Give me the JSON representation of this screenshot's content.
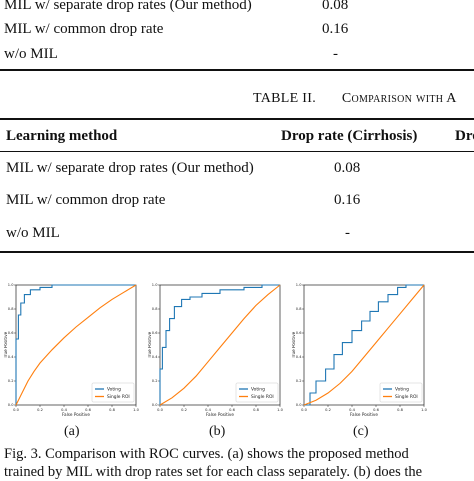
{
  "table1_partial": {
    "rows": [
      {
        "method": "MIL w/ separate drop rates (Our method)",
        "cirrhosis": "0.08"
      },
      {
        "method": "MIL w/ common drop rate",
        "cirrhosis": "0.16"
      },
      {
        "method": "w/o MIL",
        "cirrhosis": "-"
      }
    ]
  },
  "table2": {
    "number": "TABLE II.",
    "title_fragment": "Comparison with A",
    "headers": [
      "Learning method",
      "Drop rate (Cirrhosis)",
      "Dro"
    ],
    "rows": [
      {
        "method": "MIL w/ separate drop rates (Our method)",
        "cirrhosis": "0.08"
      },
      {
        "method": "MIL w/ common drop rate",
        "cirrhosis": "0.16"
      },
      {
        "method": "w/o MIL",
        "cirrhosis": "-"
      }
    ]
  },
  "figure": {
    "panel_labels": [
      "(a)",
      "(b)",
      "(c)"
    ],
    "caption_line1": "Fig. 3.   Comparison with ROC curves. (a) shows the proposed method",
    "caption_line2": "trained by MIL with drop rates set for each class separately. (b) does the"
  },
  "chart_data": [
    {
      "type": "line",
      "xlabel": "False Positive",
      "ylabel": "True Positive",
      "xlim": [
        0,
        1
      ],
      "ylim": [
        0,
        1
      ],
      "ticks": [
        "0.0",
        "0.2",
        "0.4",
        "0.6",
        "0.8",
        "1.0"
      ],
      "legend_position": "lower-right",
      "series": [
        {
          "name": "Voting",
          "color": "#1f77b4",
          "points": [
            [
              0,
              0
            ],
            [
              0,
              0.55
            ],
            [
              0.02,
              0.55
            ],
            [
              0.02,
              0.75
            ],
            [
              0.04,
              0.75
            ],
            [
              0.04,
              0.85
            ],
            [
              0.07,
              0.85
            ],
            [
              0.07,
              0.92
            ],
            [
              0.12,
              0.92
            ],
            [
              0.12,
              0.96
            ],
            [
              0.2,
              0.96
            ],
            [
              0.2,
              0.98
            ],
            [
              0.3,
              0.98
            ],
            [
              0.3,
              1.0
            ],
            [
              1,
              1
            ]
          ]
        },
        {
          "name": "Single ROI",
          "color": "#ff7f0e",
          "points": [
            [
              0,
              0
            ],
            [
              0.02,
              0.04
            ],
            [
              0.05,
              0.1
            ],
            [
              0.1,
              0.2
            ],
            [
              0.15,
              0.28
            ],
            [
              0.2,
              0.35
            ],
            [
              0.3,
              0.46
            ],
            [
              0.4,
              0.56
            ],
            [
              0.5,
              0.65
            ],
            [
              0.6,
              0.73
            ],
            [
              0.7,
              0.81
            ],
            [
              0.8,
              0.88
            ],
            [
              0.9,
              0.94
            ],
            [
              1,
              1
            ]
          ]
        }
      ]
    },
    {
      "type": "line",
      "xlabel": "False Positive",
      "ylabel": "True Positive",
      "xlim": [
        0,
        1
      ],
      "ylim": [
        0,
        1
      ],
      "ticks": [
        "0.0",
        "0.2",
        "0.4",
        "0.6",
        "0.8",
        "1.0"
      ],
      "legend_position": "lower-right",
      "series": [
        {
          "name": "Voting",
          "color": "#1f77b4",
          "points": [
            [
              0,
              0
            ],
            [
              0,
              0.3
            ],
            [
              0.02,
              0.3
            ],
            [
              0.02,
              0.48
            ],
            [
              0.05,
              0.48
            ],
            [
              0.05,
              0.62
            ],
            [
              0.08,
              0.62
            ],
            [
              0.08,
              0.72
            ],
            [
              0.12,
              0.72
            ],
            [
              0.12,
              0.82
            ],
            [
              0.18,
              0.82
            ],
            [
              0.18,
              0.88
            ],
            [
              0.25,
              0.88
            ],
            [
              0.25,
              0.9
            ],
            [
              0.35,
              0.9
            ],
            [
              0.35,
              0.93
            ],
            [
              0.5,
              0.93
            ],
            [
              0.5,
              0.96
            ],
            [
              0.7,
              0.96
            ],
            [
              0.7,
              0.98
            ],
            [
              0.85,
              0.98
            ],
            [
              0.85,
              1.0
            ],
            [
              1,
              1
            ]
          ]
        },
        {
          "name": "Single ROI",
          "color": "#ff7f0e",
          "points": [
            [
              0,
              0
            ],
            [
              0.1,
              0.06
            ],
            [
              0.2,
              0.14
            ],
            [
              0.3,
              0.24
            ],
            [
              0.4,
              0.36
            ],
            [
              0.5,
              0.48
            ],
            [
              0.6,
              0.6
            ],
            [
              0.7,
              0.72
            ],
            [
              0.8,
              0.83
            ],
            [
              0.9,
              0.92
            ],
            [
              1,
              1
            ]
          ]
        }
      ]
    },
    {
      "type": "line",
      "xlabel": "False Positive",
      "ylabel": "True Positive",
      "xlim": [
        0,
        1
      ],
      "ylim": [
        0,
        1
      ],
      "ticks": [
        "0.0",
        "0.2",
        "0.4",
        "0.6",
        "0.8",
        "1.0"
      ],
      "legend_position": "lower-right",
      "series": [
        {
          "name": "Voting",
          "color": "#1f77b4",
          "points": [
            [
              0,
              0
            ],
            [
              0.05,
              0
            ],
            [
              0.05,
              0.1
            ],
            [
              0.1,
              0.1
            ],
            [
              0.1,
              0.2
            ],
            [
              0.18,
              0.2
            ],
            [
              0.18,
              0.3
            ],
            [
              0.25,
              0.3
            ],
            [
              0.25,
              0.42
            ],
            [
              0.32,
              0.42
            ],
            [
              0.32,
              0.52
            ],
            [
              0.4,
              0.52
            ],
            [
              0.4,
              0.62
            ],
            [
              0.48,
              0.62
            ],
            [
              0.48,
              0.7
            ],
            [
              0.55,
              0.7
            ],
            [
              0.55,
              0.78
            ],
            [
              0.62,
              0.78
            ],
            [
              0.62,
              0.86
            ],
            [
              0.7,
              0.86
            ],
            [
              0.7,
              0.92
            ],
            [
              0.78,
              0.92
            ],
            [
              0.78,
              0.98
            ],
            [
              0.85,
              0.98
            ],
            [
              0.85,
              1.0
            ],
            [
              1,
              1
            ]
          ]
        },
        {
          "name": "Single ROI",
          "color": "#ff7f0e",
          "points": [
            [
              0,
              0
            ],
            [
              0.1,
              0.04
            ],
            [
              0.2,
              0.1
            ],
            [
              0.3,
              0.18
            ],
            [
              0.4,
              0.28
            ],
            [
              0.5,
              0.4
            ],
            [
              0.6,
              0.52
            ],
            [
              0.7,
              0.64
            ],
            [
              0.8,
              0.76
            ],
            [
              0.9,
              0.88
            ],
            [
              1,
              1
            ]
          ]
        }
      ]
    }
  ]
}
